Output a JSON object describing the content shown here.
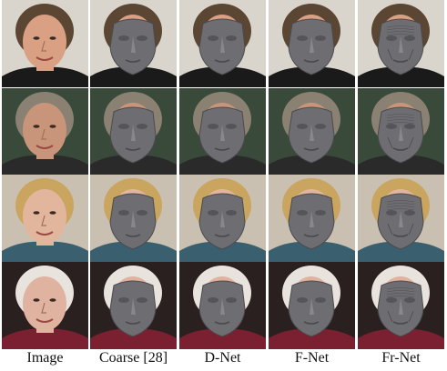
{
  "columns": [
    {
      "label": "Image"
    },
    {
      "label": "Coarse [28]"
    },
    {
      "label": "D-Net"
    },
    {
      "label": "F-Net"
    },
    {
      "label": "Fr-Net"
    }
  ],
  "rows": [
    {
      "subject": "man-black-tuxedo",
      "background": "#d9d4cc",
      "hair": "#5a4632",
      "skin": "#d9a083",
      "clothing": "#1a1a1a"
    },
    {
      "subject": "man-gray-hair",
      "background": "#3a4a3a",
      "hair": "#8a8172",
      "skin": "#c9957a",
      "clothing": "#2a2a2a"
    },
    {
      "subject": "woman-blonde-short",
      "background": "#c9c0b2",
      "hair": "#c9a55f",
      "skin": "#e2b69d",
      "clothing": "#3a5f6e"
    },
    {
      "subject": "woman-white-hair",
      "background": "#2a2020",
      "hair": "#e8e3dc",
      "skin": "#e0b2a0",
      "clothing": "#7a2030"
    }
  ],
  "colors": {
    "mesh_fill": "#6e6e72",
    "mesh_shadow": "#4a4a4e",
    "mesh_highlight": "#9a9a9e"
  }
}
